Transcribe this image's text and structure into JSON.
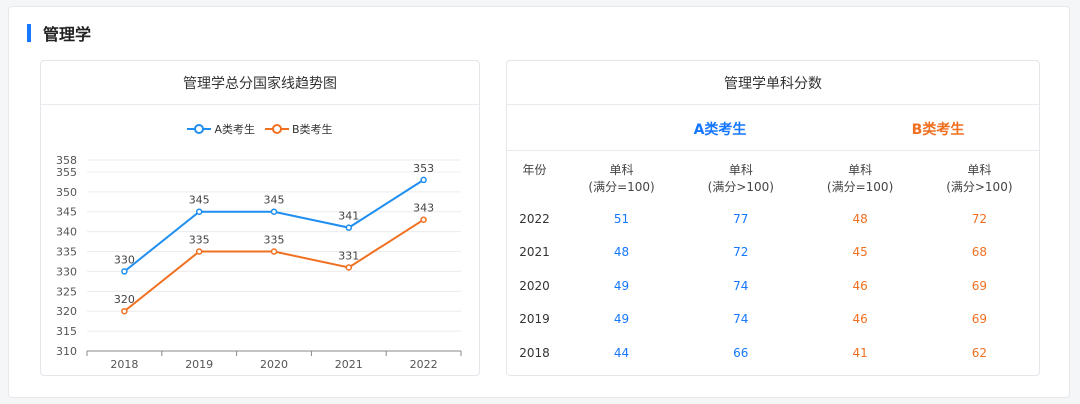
{
  "section": {
    "title": "管理学"
  },
  "left_card": {
    "title": "管理学总分国家线趋势图"
  },
  "right_card": {
    "title": "管理学单科分数"
  },
  "legend": [
    {
      "label": "A类考生",
      "color": "#1f8ef1"
    },
    {
      "label": "B类考生",
      "color": "#f07021"
    }
  ],
  "chart_data": {
    "type": "line",
    "x": [
      "2018",
      "2019",
      "2020",
      "2021",
      "2022"
    ],
    "series": [
      {
        "name": "A类考生",
        "values": [
          330,
          345,
          345,
          341,
          353
        ],
        "color": "#1f8ef1"
      },
      {
        "name": "B类考生",
        "values": [
          320,
          335,
          335,
          331,
          343
        ],
        "color": "#f07021"
      }
    ],
    "ylim": [
      310,
      358
    ],
    "yticks": [
      "310",
      "315",
      "320",
      "325",
      "330",
      "335",
      "340",
      "345",
      "350",
      "355",
      "358"
    ],
    "grid": true,
    "legend_position": "top"
  },
  "scores": {
    "group_a": "A类考生",
    "group_b": "B类考生",
    "headers": [
      {
        "l1": "年份",
        "l2": ""
      },
      {
        "l1": "单科",
        "l2": "(满分=100)"
      },
      {
        "l1": "单科",
        "l2": "(满分>100)"
      },
      {
        "l1": "单科",
        "l2": "(满分=100)"
      },
      {
        "l1": "单科",
        "l2": "(满分>100)"
      }
    ],
    "rows": [
      [
        "2022",
        "51",
        "77",
        "48",
        "72"
      ],
      [
        "2021",
        "48",
        "72",
        "45",
        "68"
      ],
      [
        "2020",
        "49",
        "74",
        "46",
        "69"
      ],
      [
        "2019",
        "49",
        "74",
        "46",
        "69"
      ],
      [
        "2018",
        "44",
        "66",
        "41",
        "62"
      ]
    ]
  }
}
